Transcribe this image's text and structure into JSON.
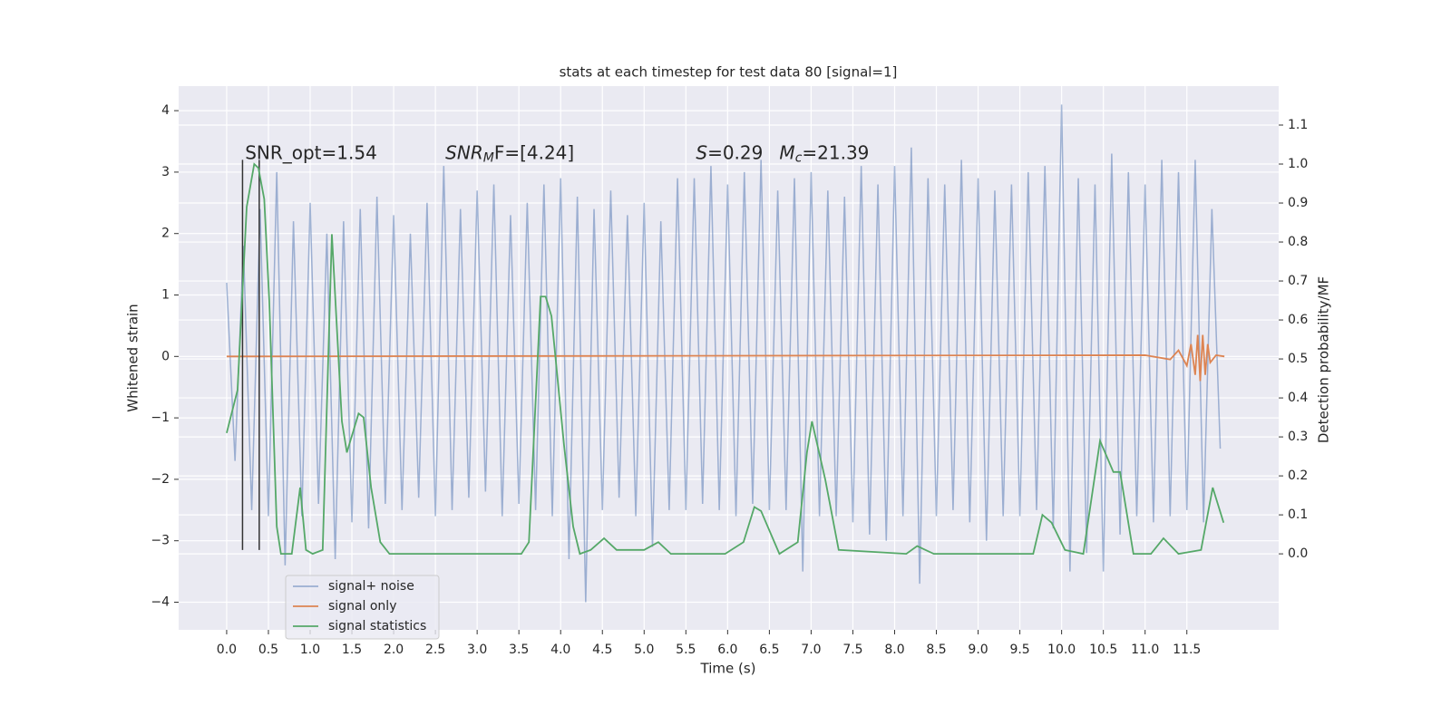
{
  "chart_data": {
    "type": "line",
    "title": "stats at each timestep for test data 80 [signal=1]",
    "x_label": "Time (s)",
    "y_label": "Whitened strain",
    "y2_label": "Detection probability/MF",
    "xlim": [
      -0.575,
      12.6
    ],
    "ylim": [
      -4.45,
      4.4
    ],
    "y2lim": [
      -0.195,
      1.2
    ],
    "xticks": [
      {
        "value": 0,
        "label": "0.0"
      },
      0.5,
      {
        "value": 1,
        "label": "1.0"
      },
      1.5,
      {
        "value": 2,
        "label": "2.0"
      },
      2.5,
      {
        "value": 3,
        "label": "3.0"
      },
      3.5,
      {
        "value": 4,
        "label": "4.0"
      },
      4.5,
      {
        "value": 5,
        "label": "5.0"
      },
      5.5,
      {
        "value": 6,
        "label": "6.0"
      },
      6.5,
      {
        "value": 7,
        "label": "7.0"
      },
      7.5,
      {
        "value": 8,
        "label": "8.0"
      },
      8.5,
      {
        "value": 9,
        "label": "9.0"
      },
      9.5,
      {
        "value": 10,
        "label": "10.0"
      },
      10.5,
      {
        "value": 11,
        "label": "11.0"
      },
      11.5
    ],
    "yticks": [
      {
        "value": -4,
        "label": "−4"
      },
      {
        "value": -3,
        "label": "−3"
      },
      {
        "value": -2,
        "label": "−2"
      },
      {
        "value": -1,
        "label": "−1"
      },
      0,
      1,
      2,
      3,
      4
    ],
    "y2ticks": [
      {
        "value": 0,
        "label": "0.0"
      },
      0.1,
      0.2,
      0.3,
      0.4,
      0.5,
      0.6,
      0.7,
      0.8,
      0.9,
      {
        "value": 1,
        "label": "1.0"
      },
      1.1
    ],
    "grid": true,
    "legend": "lower left",
    "annotations": [
      {
        "text": "SNR_opt=1.54",
        "x": 0.22,
        "y": 3.3
      },
      {
        "text": "SNR",
        "sub": "M",
        "tail": "F=[4.24]",
        "x": 2.62,
        "y": 3.3
      },
      {
        "text": "S",
        "tail": "=0.29",
        "x": 5.62,
        "y": 3.3
      },
      {
        "text": "M",
        "sub": "c",
        "tail": "=21.39",
        "x": 6.62,
        "y": 3.3
      }
    ],
    "vlines": {
      "x": [
        0.19,
        0.39
      ],
      "ymin": -3.15,
      "ymax": 3.2,
      "color": "#333333"
    },
    "series": [
      {
        "name": "signal+ noise",
        "color": "#4c72b0",
        "x": [
          0.0,
          0.1,
          0.2,
          0.3,
          0.4,
          0.5,
          0.6,
          0.7,
          0.8,
          0.9,
          1.0,
          1.1,
          1.2,
          1.3,
          1.4,
          1.5,
          1.6,
          1.7,
          1.8,
          1.9,
          2.0,
          2.1,
          2.2,
          2.3,
          2.4,
          2.5,
          2.6,
          2.7,
          2.8,
          2.9,
          3.0,
          3.1,
          3.2,
          3.3,
          3.4,
          3.5,
          3.6,
          3.7,
          3.8,
          3.9,
          4.0,
          4.1,
          4.2,
          4.3,
          4.4,
          4.5,
          4.6,
          4.7,
          4.8,
          4.9,
          5.0,
          5.1,
          5.2,
          5.3,
          5.4,
          5.5,
          5.6,
          5.7,
          5.8,
          5.9,
          6.0,
          6.1,
          6.2,
          6.3,
          6.4,
          6.5,
          6.6,
          6.7,
          6.8,
          6.9,
          7.0,
          7.1,
          7.2,
          7.3,
          7.4,
          7.5,
          7.6,
          7.7,
          7.8,
          7.9,
          8.0,
          8.1,
          8.2,
          8.3,
          8.4,
          8.5,
          8.6,
          8.7,
          8.8,
          8.9,
          9.0,
          9.1,
          9.2,
          9.3,
          9.4,
          9.5,
          9.6,
          9.7,
          9.8,
          9.9,
          10.0,
          10.1,
          10.2,
          10.3,
          10.4,
          10.5,
          10.6,
          10.7,
          10.8,
          10.9,
          11.0,
          11.1,
          11.2,
          11.3,
          11.4,
          11.5,
          11.6,
          11.7,
          11.8,
          11.9
        ],
        "values": [
          1.2,
          -1.7,
          1.8,
          -2.5,
          2.4,
          -2.6,
          3.0,
          -3.4,
          2.2,
          -2.6,
          2.5,
          -2.4,
          2.0,
          -3.3,
          2.2,
          -2.7,
          2.4,
          -2.8,
          2.6,
          -2.4,
          2.3,
          -2.5,
          2.0,
          -2.3,
          2.5,
          -2.6,
          3.1,
          -2.5,
          2.4,
          -2.3,
          2.7,
          -2.2,
          2.8,
          -2.6,
          2.3,
          -2.4,
          2.5,
          -2.5,
          2.8,
          -2.6,
          2.9,
          -3.3,
          2.6,
          -4.0,
          2.4,
          -2.5,
          2.7,
          -2.3,
          2.3,
          -2.6,
          2.5,
          -3.1,
          2.2,
          -2.5,
          2.9,
          -2.5,
          2.9,
          -2.4,
          3.1,
          -2.5,
          2.8,
          -2.6,
          3.0,
          -2.4,
          3.2,
          -2.5,
          2.7,
          -2.5,
          2.9,
          -3.5,
          3.0,
          -2.6,
          2.7,
          -2.6,
          2.6,
          -2.7,
          3.1,
          -2.9,
          2.8,
          -3.0,
          3.1,
          -2.6,
          3.4,
          -3.7,
          2.9,
          -2.6,
          2.8,
          -2.5,
          3.2,
          -2.7,
          2.9,
          -3.0,
          2.7,
          -2.6,
          2.8,
          -2.6,
          3.0,
          -2.5,
          3.1,
          -2.8,
          4.1,
          -3.5,
          2.9,
          -3.2,
          2.8,
          -3.5,
          3.3,
          -2.9,
          3.0,
          -2.6,
          2.8,
          -2.7,
          3.2,
          -2.6,
          3.0,
          -2.5,
          3.2,
          -2.7,
          2.4,
          -1.5
        ]
      },
      {
        "name": "signal only",
        "color": "#dd8452",
        "x": [
          0,
          11.0,
          11.3,
          11.4,
          11.5,
          11.55,
          11.6,
          11.63,
          11.66,
          11.69,
          11.72,
          11.75,
          11.78,
          11.85,
          11.95
        ],
        "values": [
          0,
          0.02,
          -0.05,
          0.1,
          -0.15,
          0.2,
          -0.3,
          0.35,
          -0.4,
          0.35,
          -0.3,
          0.2,
          -0.1,
          0.02,
          0
        ]
      },
      {
        "name": "signal statistics",
        "color": "#55a868",
        "axis": "y2",
        "x": [
          0,
          0.13,
          0.24,
          0.33,
          0.38,
          0.45,
          0.51,
          0.6,
          0.65,
          0.78,
          0.88,
          0.95,
          1.03,
          1.15,
          1.26,
          1.38,
          1.44,
          1.58,
          1.64,
          1.73,
          1.84,
          1.95,
          2.5,
          3.53,
          3.62,
          3.76,
          3.82,
          3.89,
          4.04,
          4.15,
          4.23,
          4.36,
          4.52,
          4.67,
          5.0,
          5.17,
          5.32,
          5.97,
          6.19,
          6.32,
          6.4,
          6.62,
          6.84,
          6.95,
          7.01,
          7.17,
          7.33,
          8.14,
          8.27,
          8.47,
          9.23,
          9.66,
          9.77,
          9.88,
          10.04,
          10.26,
          10.46,
          10.62,
          10.7,
          10.86,
          11.07,
          11.22,
          11.4,
          11.67,
          11.81,
          11.94
        ],
        "values": [
          0.31,
          0.42,
          0.89,
          1.0,
          0.99,
          0.91,
          0.65,
          0.07,
          0,
          0,
          0.17,
          0.01,
          0,
          0.01,
          0.82,
          0.34,
          0.26,
          0.36,
          0.35,
          0.17,
          0.03,
          0,
          0,
          0,
          0.03,
          0.66,
          0.66,
          0.61,
          0.28,
          0.07,
          0,
          0.01,
          0.04,
          0.01,
          0.01,
          0.03,
          0,
          0,
          0.03,
          0.12,
          0.11,
          0,
          0.03,
          0.26,
          0.34,
          0.19,
          0.01,
          0,
          0.02,
          0,
          0,
          0,
          0.1,
          0.08,
          0.01,
          0,
          0.29,
          0.21,
          0.21,
          0,
          0,
          0.04,
          0,
          0.01,
          0.17,
          0.08
        ]
      }
    ]
  }
}
